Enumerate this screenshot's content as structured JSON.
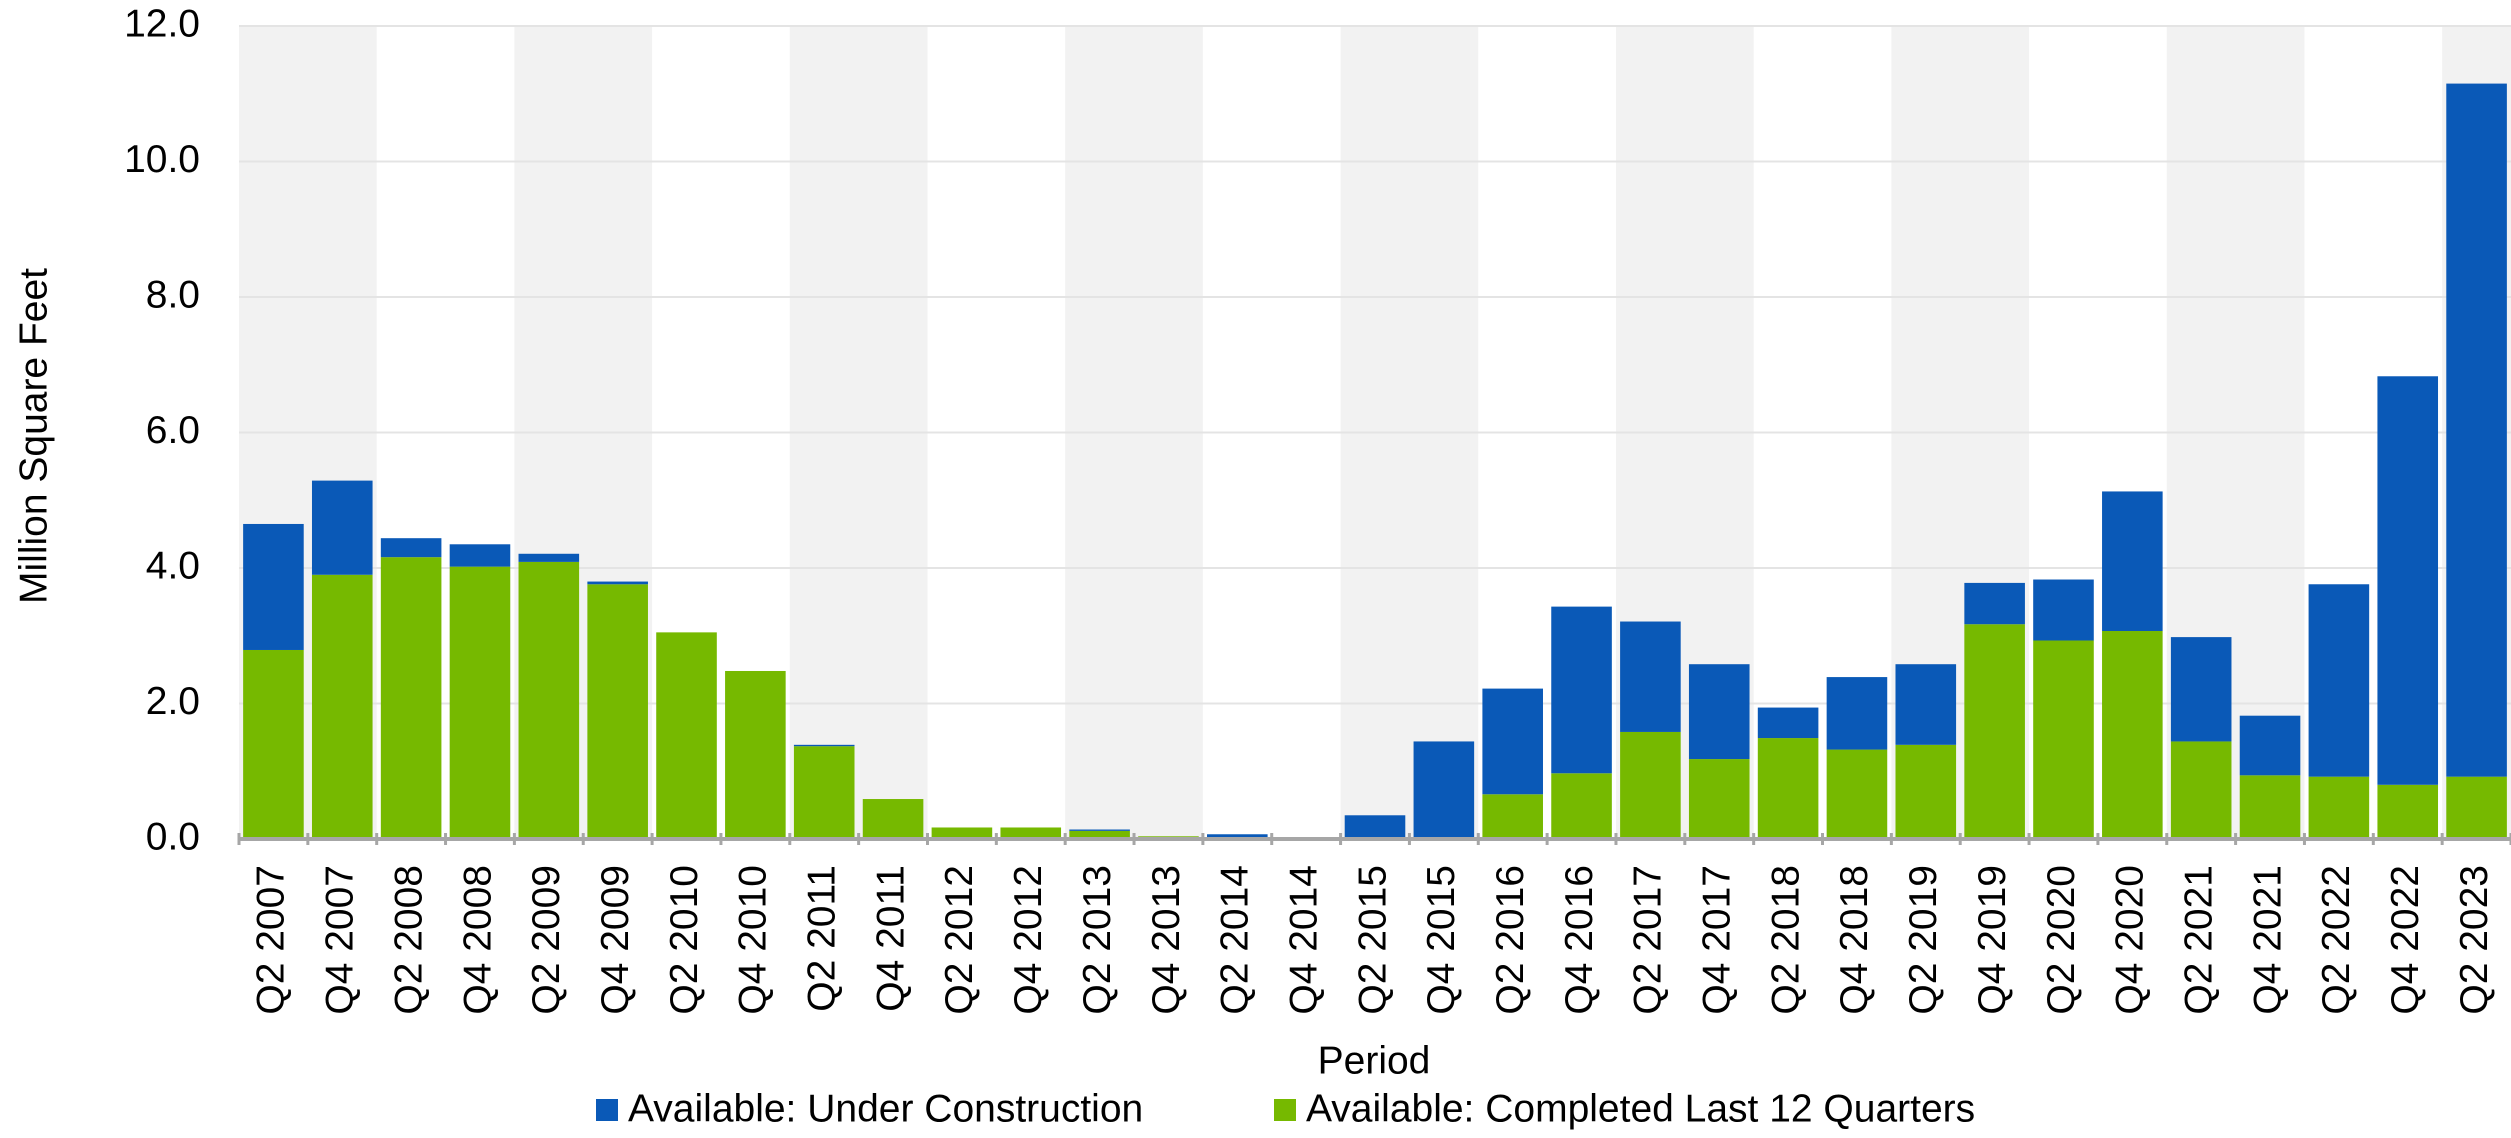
{
  "chart_data": {
    "type": "stacked_bar",
    "y_label": "Million Square Feet",
    "x_label": "Period",
    "categories": [
      "Q2 2007",
      "Q4 2007",
      "Q2 2008",
      "Q4 2008",
      "Q2 2009",
      "Q4 2009",
      "Q2 2010",
      "Q4 2010",
      "Q2 2011",
      "Q4 2011",
      "Q2 2012",
      "Q4 2012",
      "Q2 2013",
      "Q4 2013",
      "Q2 2014",
      "Q4 2014",
      "Q2 2015",
      "Q4 2015",
      "Q2 2016",
      "Q4 2016",
      "Q2 2017",
      "Q4 2017",
      "Q2 2018",
      "Q4 2018",
      "Q2 2019",
      "Q4 2019",
      "Q2 2020",
      "Q4 2020",
      "Q2 2021",
      "Q4 2021",
      "Q2 2022",
      "Q4 2022",
      "Q2 2023"
    ],
    "series": [
      {
        "name": "Available: Completed Last 12 Quarters",
        "color": "#76b900",
        "values": [
          2.79,
          3.9,
          4.16,
          4.02,
          4.09,
          3.76,
          3.05,
          2.48,
          1.37,
          0.59,
          0.17,
          0.17,
          0.12,
          0.04,
          0.02,
          0,
          0,
          0,
          0.66,
          0.97,
          1.58,
          1.18,
          1.49,
          1.32,
          1.39,
          3.17,
          2.93,
          3.07,
          1.44,
          0.94,
          0.92,
          0.8,
          0.92
        ]
      },
      {
        "name": "Available: Under Construction",
        "color": "#0a59b7",
        "values": [
          1.86,
          1.39,
          0.28,
          0.33,
          0.12,
          0.04,
          0,
          0,
          0.02,
          0,
          0,
          0,
          0.02,
          0,
          0.05,
          0,
          0.35,
          1.44,
          1.56,
          2.46,
          1.63,
          1.4,
          0.45,
          1.07,
          1.19,
          0.61,
          0.9,
          2.06,
          1.54,
          0.88,
          2.84,
          6.03,
          10.23
        ]
      }
    ],
    "legend_order": [
      1,
      0
    ],
    "ylim": [
      0,
      12
    ],
    "yticks": [
      {
        "value": 0,
        "label": "0.0"
      },
      {
        "value": 2,
        "label": "2.0"
      },
      {
        "value": 4,
        "label": "4.0"
      },
      {
        "value": 6,
        "label": "6.0"
      },
      {
        "value": 8,
        "label": "8.0"
      },
      {
        "value": 10,
        "label": "10.0"
      },
      {
        "value": 12,
        "label": "12.0"
      }
    ],
    "grid": true
  }
}
